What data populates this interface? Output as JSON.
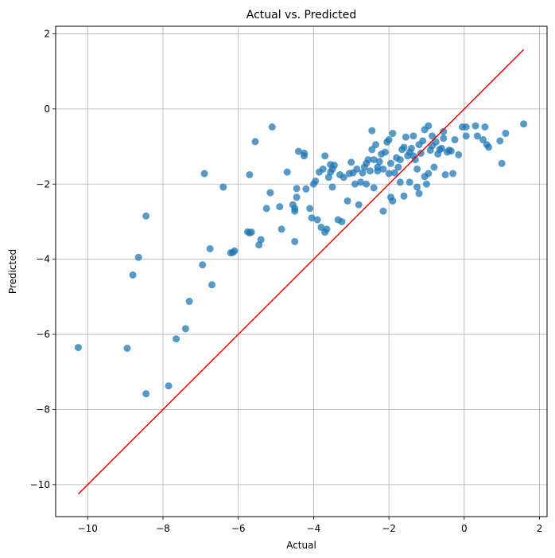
{
  "chart_data": {
    "type": "scatter",
    "title": "Actual vs. Predicted",
    "xlabel": "Actual",
    "ylabel": "Predicted",
    "xlim": [
      -10.85,
      2.2
    ],
    "ylim": [
      -10.85,
      2.2
    ],
    "xticks": [
      -10,
      -8,
      -6,
      -4,
      -2,
      0,
      2
    ],
    "yticks": [
      -10,
      -8,
      -6,
      -4,
      -2,
      0,
      2
    ],
    "xtick_labels": [
      "−10",
      "−8",
      "−6",
      "−4",
      "−2",
      "0",
      "2"
    ],
    "ytick_labels": [
      "−10",
      "−8",
      "−6",
      "−4",
      "−2",
      "0",
      "2"
    ],
    "grid": true,
    "colors": {
      "points": "#1f77b4",
      "reference_line": "#ff0000",
      "grid": "#b0b0b0"
    },
    "reference_line": {
      "x": [
        -10.25,
        1.58
      ],
      "y": [
        -10.25,
        1.58
      ]
    },
    "points": [
      [
        -10.25,
        -6.35
      ],
      [
        -8.95,
        -6.37
      ],
      [
        -8.8,
        -4.42
      ],
      [
        -8.65,
        -3.95
      ],
      [
        -8.45,
        -2.85
      ],
      [
        -8.45,
        -7.58
      ],
      [
        -7.85,
        -7.37
      ],
      [
        -7.65,
        -6.12
      ],
      [
        -7.4,
        -5.85
      ],
      [
        -7.3,
        -5.12
      ],
      [
        -6.95,
        -4.15
      ],
      [
        -6.9,
        -1.72
      ],
      [
        -6.75,
        -3.72
      ],
      [
        -6.7,
        -4.68
      ],
      [
        -6.4,
        -2.08
      ],
      [
        -6.2,
        -3.83
      ],
      [
        -6.15,
        -3.82
      ],
      [
        -6.1,
        -3.78
      ],
      [
        -5.75,
        -3.27
      ],
      [
        -5.7,
        -3.3
      ],
      [
        -5.7,
        -1.75
      ],
      [
        -5.65,
        -3.28
      ],
      [
        -5.55,
        -0.87
      ],
      [
        -5.45,
        -3.62
      ],
      [
        -5.4,
        -3.48
      ],
      [
        -5.25,
        -2.65
      ],
      [
        -5.15,
        -2.23
      ],
      [
        -5.1,
        -0.48
      ],
      [
        -4.9,
        -2.6
      ],
      [
        -4.85,
        -3.2
      ],
      [
        -4.7,
        -1.68
      ],
      [
        -4.55,
        -2.55
      ],
      [
        -4.5,
        -2.72
      ],
      [
        -4.5,
        -2.65
      ],
      [
        -4.5,
        -3.53
      ],
      [
        -4.45,
        -2.35
      ],
      [
        -4.45,
        -2.12
      ],
      [
        -4.4,
        -1.13
      ],
      [
        -4.25,
        -1.18
      ],
      [
        -4.25,
        -1.25
      ],
      [
        -4.2,
        -2.13
      ],
      [
        -4.1,
        -2.65
      ],
      [
        -4.05,
        -2.9
      ],
      [
        -4.0,
        -2.0
      ],
      [
        -3.95,
        -1.92
      ],
      [
        -3.9,
        -2.95
      ],
      [
        -3.85,
        -1.68
      ],
      [
        -3.8,
        -3.15
      ],
      [
        -3.75,
        -1.6
      ],
      [
        -3.7,
        -1.25
      ],
      [
        -3.7,
        -3.28
      ],
      [
        -3.65,
        -3.2
      ],
      [
        -3.6,
        -1.82
      ],
      [
        -3.55,
        -1.68
      ],
      [
        -3.55,
        -1.48
      ],
      [
        -3.5,
        -1.6
      ],
      [
        -3.5,
        -2.08
      ],
      [
        -3.45,
        -1.5
      ],
      [
        -3.35,
        -2.95
      ],
      [
        -3.3,
        -1.75
      ],
      [
        -3.25,
        -3.0
      ],
      [
        -3.2,
        -1.82
      ],
      [
        -3.1,
        -2.45
      ],
      [
        -3.05,
        -1.72
      ],
      [
        -2.95,
        -1.7
      ],
      [
        -2.9,
        -2.0
      ],
      [
        -2.8,
        -2.55
      ],
      [
        -2.75,
        -1.95
      ],
      [
        -2.7,
        -1.7
      ],
      [
        -2.65,
        -1.55
      ],
      [
        -2.6,
        -2.0
      ],
      [
        -2.55,
        -1.35
      ],
      [
        -2.5,
        -1.65
      ],
      [
        -2.45,
        -1.08
      ],
      [
        -2.4,
        -1.35
      ],
      [
        -2.35,
        -0.95
      ],
      [
        -2.3,
        -1.55
      ],
      [
        -2.3,
        -1.65
      ],
      [
        -2.25,
        -1.4
      ],
      [
        -2.2,
        -1.2
      ],
      [
        -2.15,
        -2.72
      ],
      [
        -2.15,
        -1.6
      ],
      [
        -2.1,
        -1.15
      ],
      [
        -2.05,
        -0.88
      ],
      [
        -2.0,
        -1.72
      ],
      [
        -2.0,
        -0.82
      ],
      [
        -1.95,
        -2.35
      ],
      [
        -1.95,
        -1.45
      ],
      [
        -1.9,
        -0.65
      ],
      [
        -1.9,
        -2.45
      ],
      [
        -1.85,
        -1.7
      ],
      [
        -1.8,
        -1.3
      ],
      [
        -1.75,
        -1.55
      ],
      [
        -1.7,
        -1.95
      ],
      [
        -1.7,
        -1.35
      ],
      [
        -1.65,
        -1.08
      ],
      [
        -1.6,
        -1.02
      ],
      [
        -1.6,
        -2.32
      ],
      [
        -1.55,
        -0.75
      ],
      [
        -1.5,
        -1.25
      ],
      [
        -1.45,
        -1.15
      ],
      [
        -1.45,
        -1.95
      ],
      [
        -1.4,
        -1.05
      ],
      [
        -1.35,
        -0.72
      ],
      [
        -1.3,
        -1.35
      ],
      [
        -1.25,
        -1.6
      ],
      [
        -1.25,
        -2.08
      ],
      [
        -1.2,
        -0.95
      ],
      [
        -1.2,
        -2.25
      ],
      [
        -1.15,
        -1.18
      ],
      [
        -1.1,
        -0.85
      ],
      [
        -1.05,
        -0.55
      ],
      [
        -1.05,
        -1.8
      ],
      [
        -1.0,
        -2.0
      ],
      [
        -0.95,
        -1.72
      ],
      [
        -0.95,
        -0.45
      ],
      [
        -0.9,
        -1.1
      ],
      [
        -0.85,
        -0.98
      ],
      [
        -0.85,
        -0.72
      ],
      [
        -0.8,
        -1.55
      ],
      [
        -0.75,
        -0.88
      ],
      [
        -0.7,
        -1.2
      ],
      [
        -0.65,
        -1.08
      ],
      [
        -0.6,
        -1.05
      ],
      [
        -0.55,
        -0.6
      ],
      [
        -0.5,
        -1.75
      ],
      [
        -0.45,
        -1.15
      ],
      [
        -0.4,
        -1.1
      ],
      [
        -0.35,
        -1.12
      ],
      [
        -0.3,
        -1.72
      ],
      [
        -0.25,
        -0.82
      ],
      [
        -0.15,
        -1.22
      ],
      [
        -0.05,
        -0.48
      ],
      [
        0.05,
        -0.48
      ],
      [
        0.05,
        -0.72
      ],
      [
        0.3,
        -0.45
      ],
      [
        0.35,
        -0.72
      ],
      [
        0.5,
        -0.82
      ],
      [
        0.55,
        -0.48
      ],
      [
        0.6,
        -0.95
      ],
      [
        0.65,
        -1.02
      ],
      [
        0.95,
        -0.85
      ],
      [
        1.0,
        -1.45
      ],
      [
        1.1,
        -0.65
      ],
      [
        1.58,
        -0.4
      ],
      [
        -2.45,
        -0.58
      ],
      [
        -2.4,
        -2.1
      ],
      [
        -2.6,
        -1.45
      ],
      [
        -2.85,
        -1.6
      ],
      [
        -3.0,
        -1.42
      ],
      [
        -1.35,
        -1.25
      ],
      [
        -0.55,
        -0.78
      ]
    ]
  }
}
